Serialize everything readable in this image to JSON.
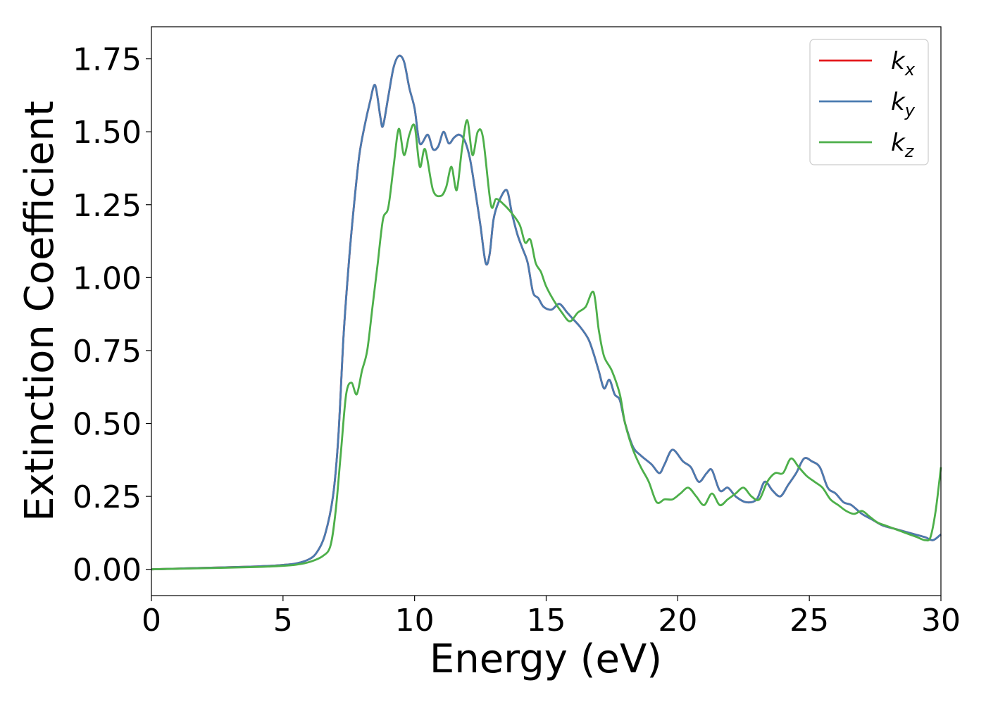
{
  "chart_data": {
    "type": "line",
    "xlabel": "Energy (eV)",
    "ylabel": "Extinction Coefficient",
    "xlim": [
      0,
      30
    ],
    "ylim": [
      -0.09,
      1.86
    ],
    "xticks": [
      "0",
      "5",
      "10",
      "15",
      "20",
      "25",
      "30"
    ],
    "yticks": [
      "0.00",
      "0.25",
      "0.50",
      "0.75",
      "1.00",
      "1.25",
      "1.50",
      "1.75"
    ],
    "grid": false,
    "legend_position": "top-right",
    "series": [
      {
        "name": "k_x",
        "legend_base": "k",
        "legend_sub": "x",
        "color": "#e41a1c",
        "x": [
          0,
          2,
          4,
          5,
          5.5,
          6,
          6.3,
          6.6,
          6.9,
          7.1,
          7.3,
          7.5,
          7.7,
          7.9,
          8.1,
          8.3,
          8.5,
          8.7,
          8.8,
          9.0,
          9.2,
          9.4,
          9.6,
          9.8,
          10.0,
          10.2,
          10.5,
          10.7,
          10.9,
          11.1,
          11.3,
          11.5,
          11.7,
          11.9,
          12.1,
          12.3,
          12.5,
          12.7,
          12.85,
          13.0,
          13.2,
          13.5,
          13.7,
          13.9,
          14.1,
          14.3,
          14.5,
          14.7,
          14.9,
          15.2,
          15.5,
          15.8,
          16.0,
          16.3,
          16.6,
          16.8,
          17.0,
          17.2,
          17.4,
          17.6,
          17.8,
          18.0,
          18.3,
          18.6,
          19.0,
          19.3,
          19.5,
          19.8,
          20.2,
          20.5,
          20.8,
          21.1,
          21.3,
          21.6,
          21.9,
          22.2,
          22.6,
          23.0,
          23.3,
          23.6,
          23.9,
          24.2,
          24.5,
          24.8,
          25.1,
          25.4,
          25.7,
          26.0,
          26.3,
          26.6,
          27.0,
          27.4,
          27.8,
          28.2,
          28.6,
          29.0,
          29.4,
          29.7,
          30.0
        ],
        "y": [
          0,
          0.005,
          0.01,
          0.015,
          0.02,
          0.035,
          0.06,
          0.12,
          0.25,
          0.45,
          0.8,
          1.05,
          1.25,
          1.42,
          1.52,
          1.6,
          1.66,
          1.55,
          1.52,
          1.62,
          1.72,
          1.76,
          1.74,
          1.65,
          1.58,
          1.46,
          1.49,
          1.44,
          1.45,
          1.5,
          1.46,
          1.48,
          1.49,
          1.47,
          1.41,
          1.3,
          1.18,
          1.05,
          1.08,
          1.2,
          1.26,
          1.3,
          1.22,
          1.15,
          1.1,
          1.05,
          0.95,
          0.93,
          0.9,
          0.89,
          0.91,
          0.88,
          0.86,
          0.83,
          0.79,
          0.74,
          0.68,
          0.62,
          0.65,
          0.6,
          0.58,
          0.5,
          0.42,
          0.39,
          0.36,
          0.33,
          0.36,
          0.41,
          0.37,
          0.35,
          0.3,
          0.33,
          0.34,
          0.27,
          0.28,
          0.25,
          0.23,
          0.24,
          0.3,
          0.27,
          0.25,
          0.29,
          0.33,
          0.38,
          0.37,
          0.35,
          0.28,
          0.26,
          0.23,
          0.22,
          0.19,
          0.17,
          0.15,
          0.14,
          0.13,
          0.12,
          0.11,
          0.1,
          0.12
        ]
      },
      {
        "name": "k_y",
        "legend_base": "k",
        "legend_sub": "y",
        "color": "#4a7bb0",
        "x": [
          0,
          2,
          4,
          5,
          5.5,
          6,
          6.3,
          6.6,
          6.9,
          7.1,
          7.3,
          7.5,
          7.7,
          7.9,
          8.1,
          8.3,
          8.5,
          8.7,
          8.8,
          9.0,
          9.2,
          9.4,
          9.6,
          9.8,
          10.0,
          10.2,
          10.5,
          10.7,
          10.9,
          11.1,
          11.3,
          11.5,
          11.7,
          11.9,
          12.1,
          12.3,
          12.5,
          12.7,
          12.85,
          13.0,
          13.2,
          13.5,
          13.7,
          13.9,
          14.1,
          14.3,
          14.5,
          14.7,
          14.9,
          15.2,
          15.5,
          15.8,
          16.0,
          16.3,
          16.6,
          16.8,
          17.0,
          17.2,
          17.4,
          17.6,
          17.8,
          18.0,
          18.3,
          18.6,
          19.0,
          19.3,
          19.5,
          19.8,
          20.2,
          20.5,
          20.8,
          21.1,
          21.3,
          21.6,
          21.9,
          22.2,
          22.6,
          23.0,
          23.3,
          23.6,
          23.9,
          24.2,
          24.5,
          24.8,
          25.1,
          25.4,
          25.7,
          26.0,
          26.3,
          26.6,
          27.0,
          27.4,
          27.8,
          28.2,
          28.6,
          29.0,
          29.4,
          29.7,
          30.0
        ],
        "y": [
          0,
          0.005,
          0.01,
          0.015,
          0.02,
          0.035,
          0.06,
          0.12,
          0.25,
          0.45,
          0.8,
          1.05,
          1.25,
          1.42,
          1.52,
          1.6,
          1.66,
          1.55,
          1.52,
          1.62,
          1.72,
          1.76,
          1.74,
          1.65,
          1.58,
          1.46,
          1.49,
          1.44,
          1.45,
          1.5,
          1.46,
          1.48,
          1.49,
          1.47,
          1.41,
          1.3,
          1.18,
          1.05,
          1.08,
          1.2,
          1.26,
          1.3,
          1.22,
          1.15,
          1.1,
          1.05,
          0.95,
          0.93,
          0.9,
          0.89,
          0.91,
          0.88,
          0.86,
          0.83,
          0.79,
          0.74,
          0.68,
          0.62,
          0.65,
          0.6,
          0.58,
          0.5,
          0.42,
          0.39,
          0.36,
          0.33,
          0.36,
          0.41,
          0.37,
          0.35,
          0.3,
          0.33,
          0.34,
          0.27,
          0.28,
          0.25,
          0.23,
          0.24,
          0.3,
          0.27,
          0.25,
          0.29,
          0.33,
          0.38,
          0.37,
          0.35,
          0.28,
          0.26,
          0.23,
          0.22,
          0.19,
          0.17,
          0.15,
          0.14,
          0.13,
          0.12,
          0.11,
          0.1,
          0.12
        ]
      },
      {
        "name": "k_z",
        "legend_base": "k",
        "legend_sub": "z",
        "color": "#4daf4a",
        "x": [
          0,
          2,
          4,
          5,
          5.5,
          6,
          6.5,
          6.8,
          7.0,
          7.2,
          7.4,
          7.6,
          7.8,
          8.0,
          8.2,
          8.4,
          8.6,
          8.8,
          9.0,
          9.2,
          9.4,
          9.6,
          9.8,
          10.0,
          10.2,
          10.4,
          10.7,
          11.0,
          11.2,
          11.4,
          11.6,
          11.8,
          12.0,
          12.2,
          12.4,
          12.6,
          12.9,
          13.1,
          13.4,
          13.7,
          14.0,
          14.2,
          14.4,
          14.6,
          14.8,
          15.0,
          15.3,
          15.6,
          15.9,
          16.2,
          16.5,
          16.8,
          17.0,
          17.2,
          17.5,
          17.8,
          18.0,
          18.3,
          18.6,
          18.9,
          19.2,
          19.5,
          19.8,
          20.1,
          20.4,
          20.7,
          21.0,
          21.3,
          21.6,
          21.9,
          22.2,
          22.5,
          22.8,
          23.1,
          23.4,
          23.7,
          24.0,
          24.3,
          24.6,
          24.9,
          25.2,
          25.5,
          25.8,
          26.1,
          26.4,
          26.7,
          27.0,
          27.3,
          27.6,
          27.9,
          28.2,
          28.5,
          28.8,
          29.1,
          29.4,
          29.6,
          29.8,
          30.0
        ],
        "y": [
          0,
          0.004,
          0.008,
          0.012,
          0.016,
          0.025,
          0.045,
          0.08,
          0.2,
          0.4,
          0.6,
          0.64,
          0.6,
          0.68,
          0.75,
          0.9,
          1.05,
          1.2,
          1.24,
          1.38,
          1.51,
          1.42,
          1.49,
          1.52,
          1.38,
          1.44,
          1.3,
          1.28,
          1.31,
          1.38,
          1.3,
          1.44,
          1.54,
          1.42,
          1.5,
          1.48,
          1.25,
          1.27,
          1.25,
          1.22,
          1.18,
          1.12,
          1.13,
          1.05,
          1.02,
          0.97,
          0.92,
          0.88,
          0.85,
          0.88,
          0.9,
          0.95,
          0.82,
          0.73,
          0.68,
          0.6,
          0.5,
          0.41,
          0.35,
          0.3,
          0.23,
          0.24,
          0.24,
          0.26,
          0.28,
          0.25,
          0.22,
          0.26,
          0.22,
          0.24,
          0.26,
          0.28,
          0.25,
          0.24,
          0.3,
          0.33,
          0.33,
          0.38,
          0.35,
          0.32,
          0.3,
          0.28,
          0.24,
          0.22,
          0.2,
          0.19,
          0.2,
          0.18,
          0.16,
          0.15,
          0.14,
          0.13,
          0.12,
          0.11,
          0.1,
          0.11,
          0.2,
          0.35
        ]
      }
    ]
  }
}
